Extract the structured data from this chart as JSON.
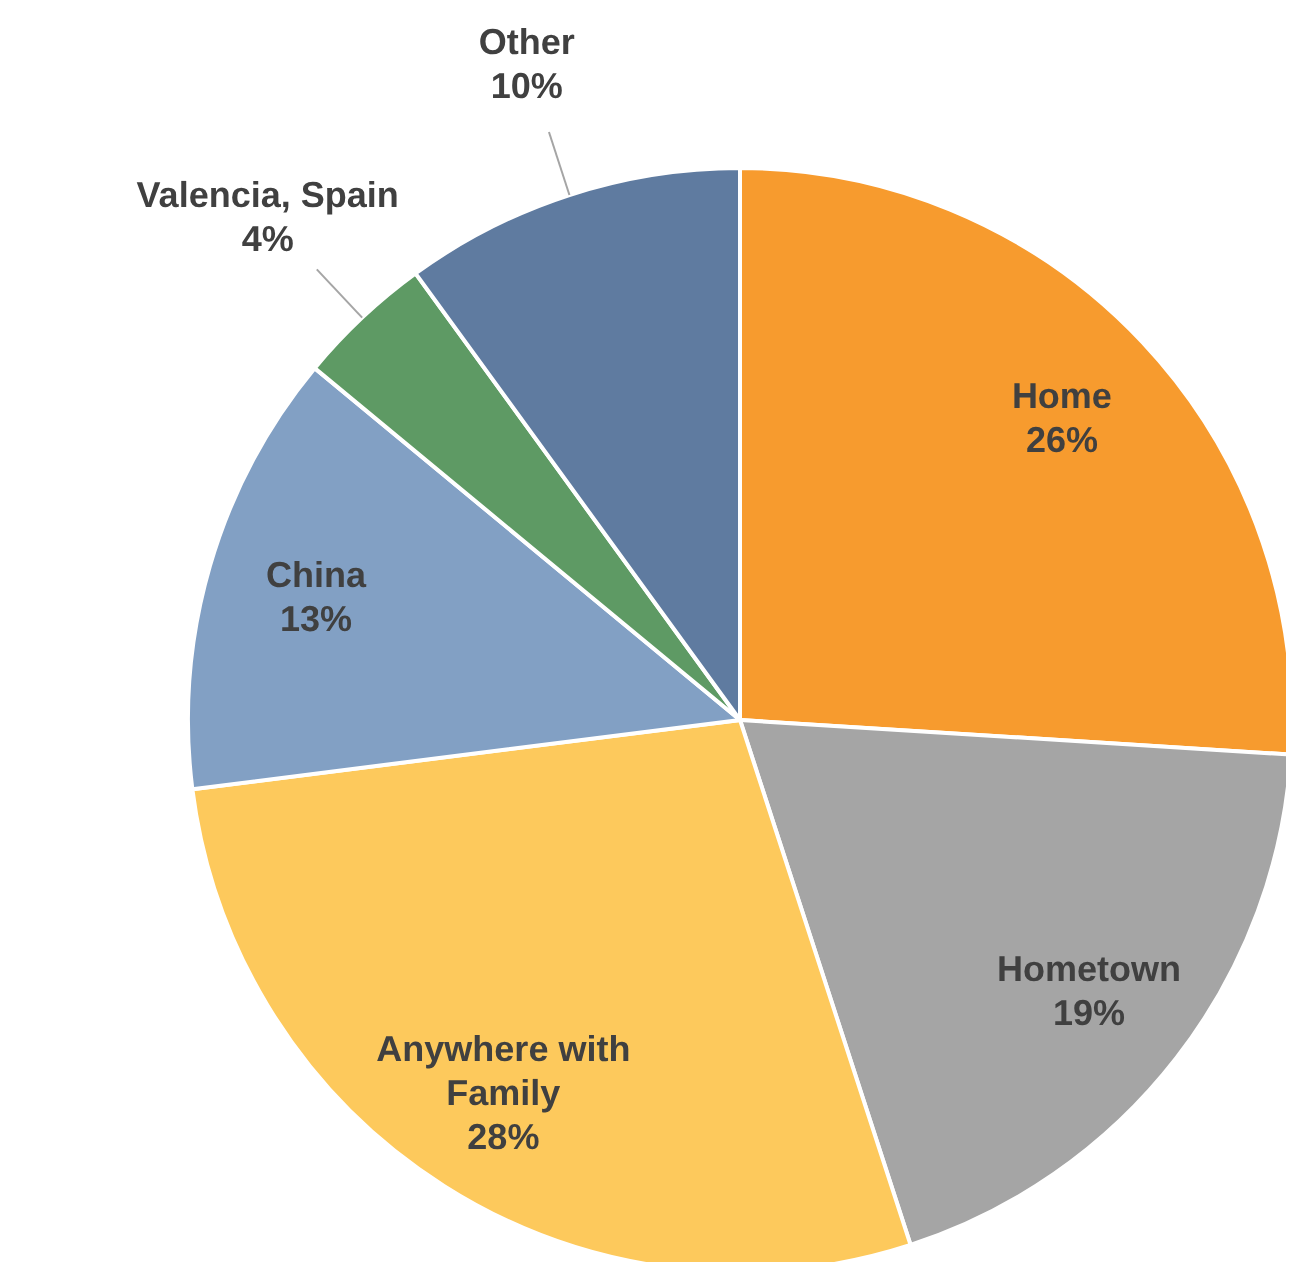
{
  "chart_data": {
    "type": "pie",
    "categories": [
      "Home",
      "Hometown",
      "Anywhere with Family",
      "China",
      "Valencia, Spain",
      "Other"
    ],
    "values": [
      26,
      19,
      28,
      13,
      4,
      10
    ],
    "value_labels": [
      "26%",
      "19%",
      "28%",
      "13%",
      "4%",
      "10%"
    ],
    "colors": [
      "#f79b2e",
      "#a5a5a5",
      "#fdc95c",
      "#82a0c4",
      "#5e9a64",
      "#5f7ba0"
    ],
    "legend": false
  }
}
